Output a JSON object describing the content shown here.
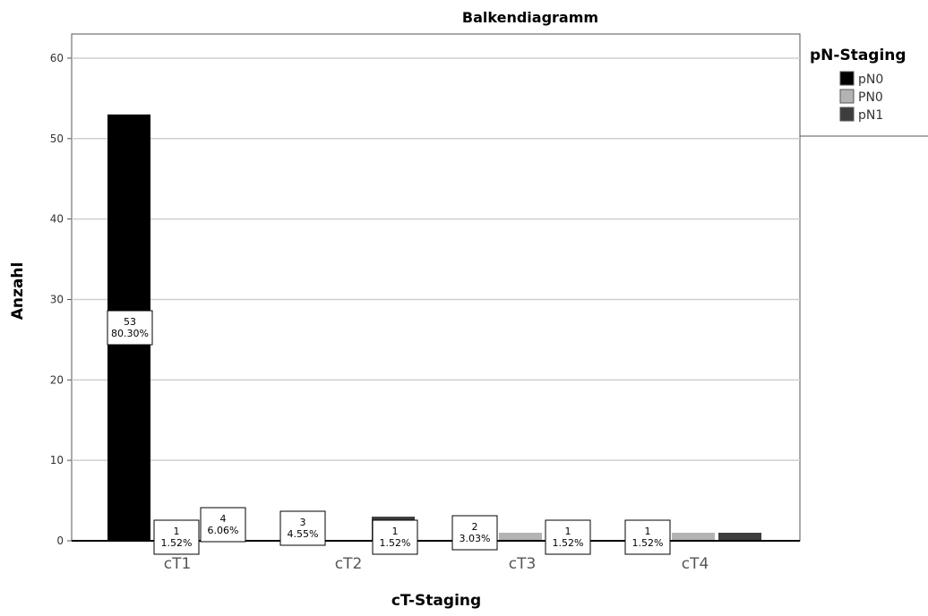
{
  "chart_data": {
    "type": "bar",
    "title": "Balkendiagramm",
    "xlabel": "cT-Staging",
    "ylabel": "Anzahl",
    "ylim": [
      0,
      63
    ],
    "yticks": [
      0,
      10,
      20,
      30,
      40,
      50,
      60
    ],
    "categories": [
      "cT1",
      "cT2",
      "cT3",
      "cT4"
    ],
    "grid": true,
    "legend": {
      "title": "pN-Staging",
      "position": "top-right",
      "entries": [
        {
          "label": "pN0",
          "color": "#000000"
        },
        {
          "label": "PN0",
          "color": "#b3b3b3"
        },
        {
          "label": "pN1",
          "color": "#3d3d3d"
        }
      ]
    },
    "series": [
      {
        "name": "pN0",
        "color": "#000000",
        "values": [
          53,
          0,
          0,
          0
        ],
        "labels": [
          [
            "53",
            "80.30%"
          ],
          null,
          null,
          null
        ]
      },
      {
        "name": "PN0",
        "color": "#b3b3b3",
        "values": [
          1,
          0,
          1,
          1
        ],
        "labels": [
          [
            "1",
            "1.52%"
          ],
          null,
          [
            "1",
            "1.52%"
          ],
          [
            "1",
            "1.52%"
          ]
        ]
      },
      {
        "name": "pN1",
        "color": "#3d3d3d",
        "values": [
          4,
          3,
          2,
          1
        ],
        "labels": [
          [
            "4",
            "6.06%"
          ],
          [
            "3",
            "4.55%"
          ],
          [
            "2",
            "3.03%"
          ],
          [
            "1",
            "1.52%"
          ]
        ]
      }
    ]
  }
}
